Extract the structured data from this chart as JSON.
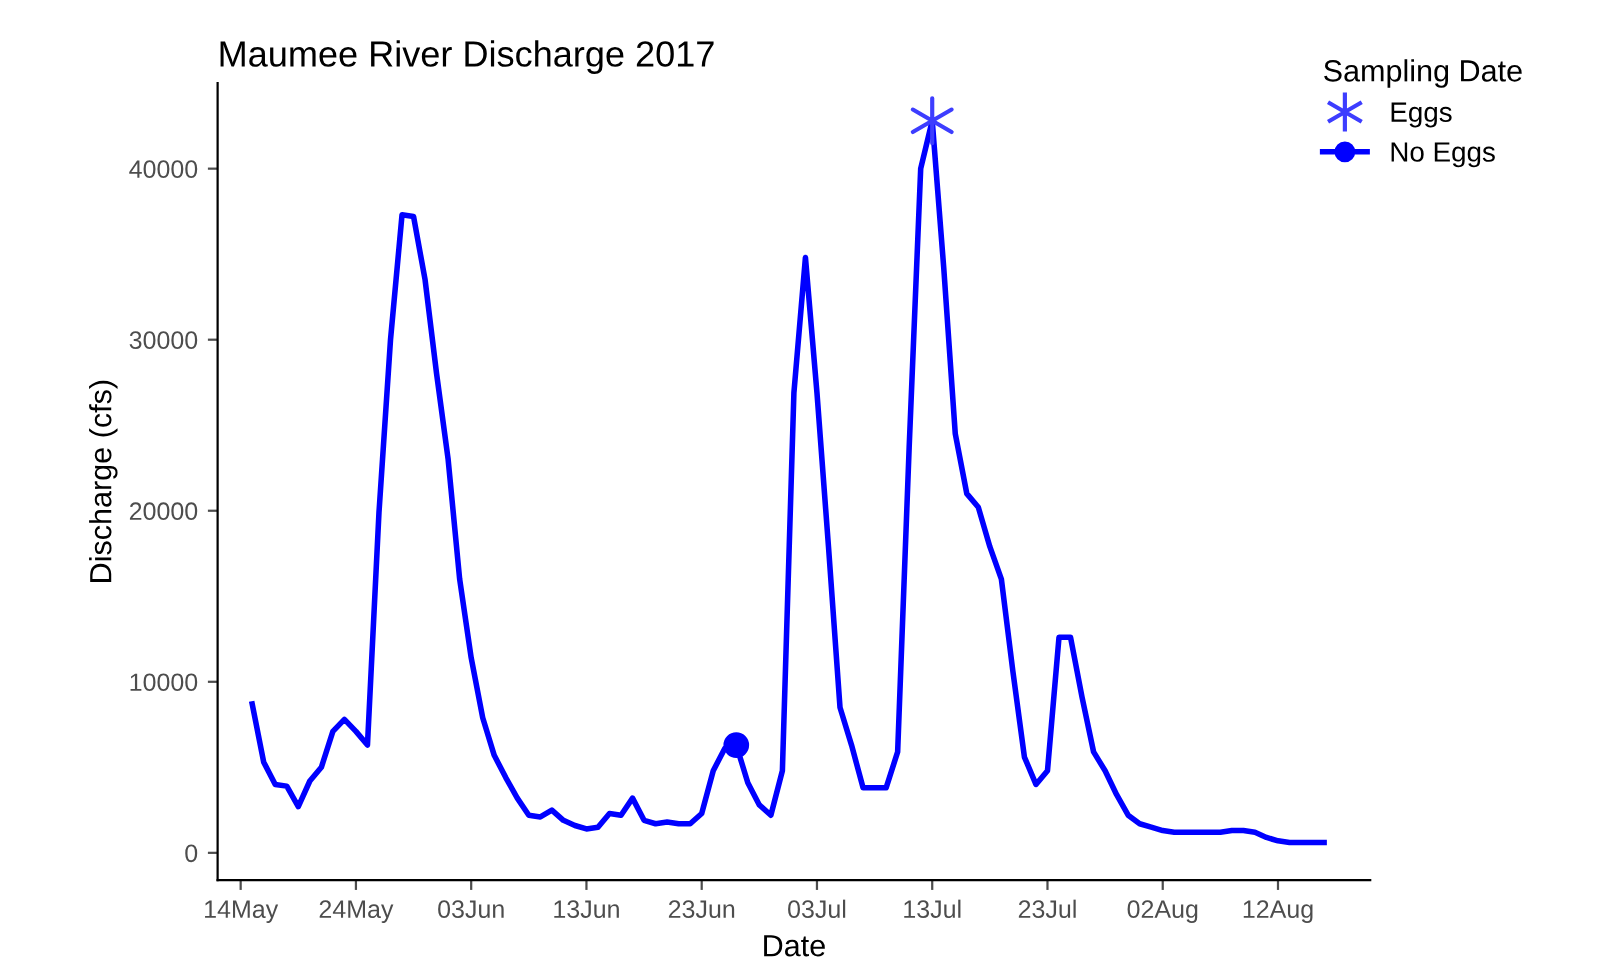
{
  "chart_data": {
    "type": "line",
    "title": "Maumee River Discharge 2017",
    "xlabel": "Date",
    "ylabel": "Discharge (cfs)",
    "legend_title": "Sampling Date",
    "legend": "top right",
    "grid": false,
    "xlim": [
      "2017-05-12",
      "2017-08-20"
    ],
    "xticks": [
      {
        "value": "2017-05-14",
        "label": "14May"
      },
      {
        "value": "2017-05-24",
        "label": "24May"
      },
      {
        "value": "2017-06-03",
        "label": "03Jun"
      },
      {
        "value": "2017-06-13",
        "label": "13Jun"
      },
      {
        "value": "2017-06-23",
        "label": "23Jun"
      },
      {
        "value": "2017-07-03",
        "label": "03Jul"
      },
      {
        "value": "2017-07-13",
        "label": "13Jul"
      },
      {
        "value": "2017-07-23",
        "label": "23Jul"
      },
      {
        "value": "2017-08-02",
        "label": "02Aug"
      },
      {
        "value": "2017-08-12",
        "label": "12Aug"
      }
    ],
    "ylim": [
      -1600,
      45000
    ],
    "yticks": [
      0,
      10000,
      20000,
      30000,
      40000
    ],
    "series": [
      {
        "color": "#0000ff",
        "marker": "none",
        "line_style": "solid",
        "x": [
          "2017-05-15",
          "2017-05-16",
          "2017-05-17",
          "2017-05-18",
          "2017-05-19",
          "2017-05-20",
          "2017-05-21",
          "2017-05-22",
          "2017-05-23",
          "2017-05-24",
          "2017-05-25",
          "2017-05-26",
          "2017-05-27",
          "2017-05-28",
          "2017-05-29",
          "2017-05-30",
          "2017-05-31",
          "2017-06-01",
          "2017-06-02",
          "2017-06-03",
          "2017-06-04",
          "2017-06-05",
          "2017-06-06",
          "2017-06-07",
          "2017-06-08",
          "2017-06-09",
          "2017-06-10",
          "2017-06-11",
          "2017-06-12",
          "2017-06-13",
          "2017-06-14",
          "2017-06-15",
          "2017-06-16",
          "2017-06-17",
          "2017-06-18",
          "2017-06-19",
          "2017-06-20",
          "2017-06-21",
          "2017-06-22",
          "2017-06-23",
          "2017-06-24",
          "2017-06-25",
          "2017-06-26",
          "2017-06-27",
          "2017-06-28",
          "2017-06-29",
          "2017-06-30",
          "2017-07-01",
          "2017-07-02",
          "2017-07-03",
          "2017-07-04",
          "2017-07-05",
          "2017-07-06",
          "2017-07-07",
          "2017-07-08",
          "2017-07-09",
          "2017-07-10",
          "2017-07-11",
          "2017-07-12",
          "2017-07-13",
          "2017-07-14",
          "2017-07-15",
          "2017-07-16",
          "2017-07-17",
          "2017-07-18",
          "2017-07-19",
          "2017-07-20",
          "2017-07-21",
          "2017-07-22",
          "2017-07-23",
          "2017-07-24",
          "2017-07-25",
          "2017-07-26",
          "2017-07-27",
          "2017-07-28",
          "2017-07-29",
          "2017-07-30",
          "2017-07-31",
          "2017-08-01",
          "2017-08-02",
          "2017-08-03",
          "2017-08-04",
          "2017-08-05",
          "2017-08-06",
          "2017-08-07",
          "2017-08-08",
          "2017-08-09",
          "2017-08-10",
          "2017-08-11",
          "2017-08-12",
          "2017-08-13",
          "2017-08-14",
          "2017-08-15",
          "2017-08-16"
        ],
        "values": [
          8700,
          5300,
          4000,
          3900,
          2700,
          4200,
          5000,
          7100,
          7800,
          7100,
          6300,
          19900,
          30000,
          37300,
          37200,
          33500,
          28000,
          23000,
          16000,
          11400,
          7900,
          5700,
          4400,
          3200,
          2200,
          2100,
          2500,
          1900,
          1600,
          1400,
          1500,
          2300,
          2200,
          3200,
          1900,
          1700,
          1800,
          1700,
          1700,
          2300,
          4800,
          6100,
          6300,
          4100,
          2800,
          2200,
          4800,
          26900,
          34800,
          26900,
          17900,
          8500,
          6300,
          3800,
          3800,
          3800,
          5900,
          23700,
          40000,
          42800,
          34200,
          24500,
          21000,
          20200,
          17900,
          16000,
          10600,
          5600,
          4000,
          4800,
          12600,
          12600,
          9100,
          5900,
          4800,
          3400,
          2200,
          1700,
          1500,
          1300,
          1200,
          1200,
          1200,
          1200,
          1200,
          1300,
          1300,
          1200,
          900,
          700,
          600,
          600,
          600,
          600
        ]
      },
      {
        "type": "scatter",
        "name": "Eggs",
        "color": "#3d3dff",
        "marker": "cross",
        "x": [
          "2017-07-13"
        ],
        "values": [
          42800
        ]
      },
      {
        "type": "scatter",
        "name": "No Eggs",
        "color": "#0000ff",
        "marker": "circle",
        "line_style": "solid",
        "x": [
          "2017-06-26"
        ],
        "values": [
          6300
        ]
      }
    ]
  }
}
